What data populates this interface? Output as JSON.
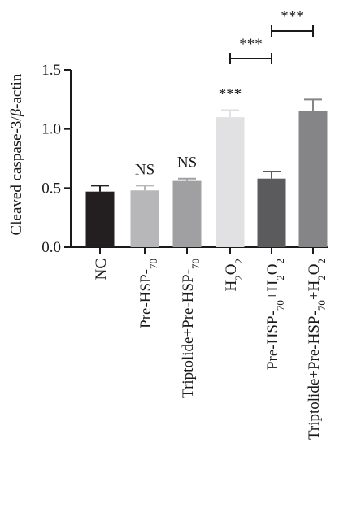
{
  "chart_data": {
    "type": "bar",
    "ylabel_prefix": "Cleaved caspase-3/",
    "ylabel_beta": "β",
    "ylabel_suffix": "-actin",
    "ylim": [
      0,
      1.5
    ],
    "yticks": [
      "0.0",
      "0.5",
      "1.0",
      "1.5"
    ],
    "grid": false,
    "categories": [
      {
        "label": "NC",
        "value": 0.47,
        "error": 0.05,
        "color": "#231f20",
        "annotation": ""
      },
      {
        "label": "Pre-HSP-70",
        "value": 0.48,
        "error": 0.04,
        "color": "#b7b7b9",
        "annotation": "NS"
      },
      {
        "label": "Triptolide+Pre-HSP-70",
        "value": 0.56,
        "error": 0.02,
        "color": "#a0a0a2",
        "annotation": "NS"
      },
      {
        "label": "H2O2",
        "value": 1.1,
        "error": 0.06,
        "color": "#e1e1e3",
        "annotation": "***"
      },
      {
        "label": "Pre-HSP-70+H2O2",
        "value": 0.58,
        "error": 0.06,
        "color": "#5b5b5d",
        "annotation": ""
      },
      {
        "label": "Triptolide+Pre-HSP-70+H2O2",
        "value": 1.15,
        "error": 0.1,
        "color": "#858587",
        "annotation": ""
      }
    ],
    "comparisons": [
      {
        "from": 3,
        "to": 4,
        "label": "***"
      },
      {
        "from": 4,
        "to": 5,
        "label": "***"
      }
    ]
  }
}
